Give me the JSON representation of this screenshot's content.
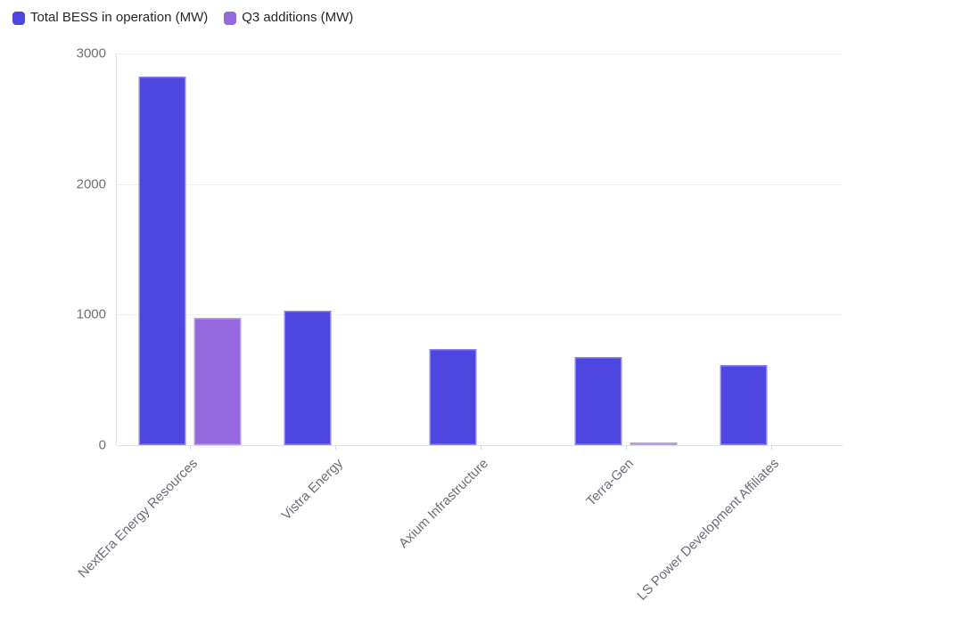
{
  "chart_data": {
    "type": "bar",
    "categories": [
      "NextEra Energy Resources",
      "Vistra Energy",
      "Axium Infrastructure",
      "Terra-Gen",
      "LS Power Development Affiliates"
    ],
    "series": [
      {
        "name": "Total BESS in operation (MW)",
        "color": "#4d46e0",
        "values": [
          2820,
          1030,
          735,
          675,
          615
        ]
      },
      {
        "name": "Q3 additions (MW)",
        "color": "#9569dd",
        "values": [
          975,
          0,
          0,
          20,
          0
        ]
      }
    ],
    "title": "",
    "xlabel": "",
    "ylabel": "",
    "ylim": [
      0,
      3000
    ],
    "yticks": [
      0,
      1000,
      2000,
      3000
    ],
    "grid": true,
    "legend_position": "top-left",
    "x_label_rotation_deg": 45
  },
  "colors": {
    "background": "#ffffff",
    "grid_line": "#f2f2f4",
    "axis_line": "#e0e0e6",
    "y_tick_text": "#6e7079",
    "x_tick_text": "#6d6d78",
    "legend_text": "#262626"
  }
}
